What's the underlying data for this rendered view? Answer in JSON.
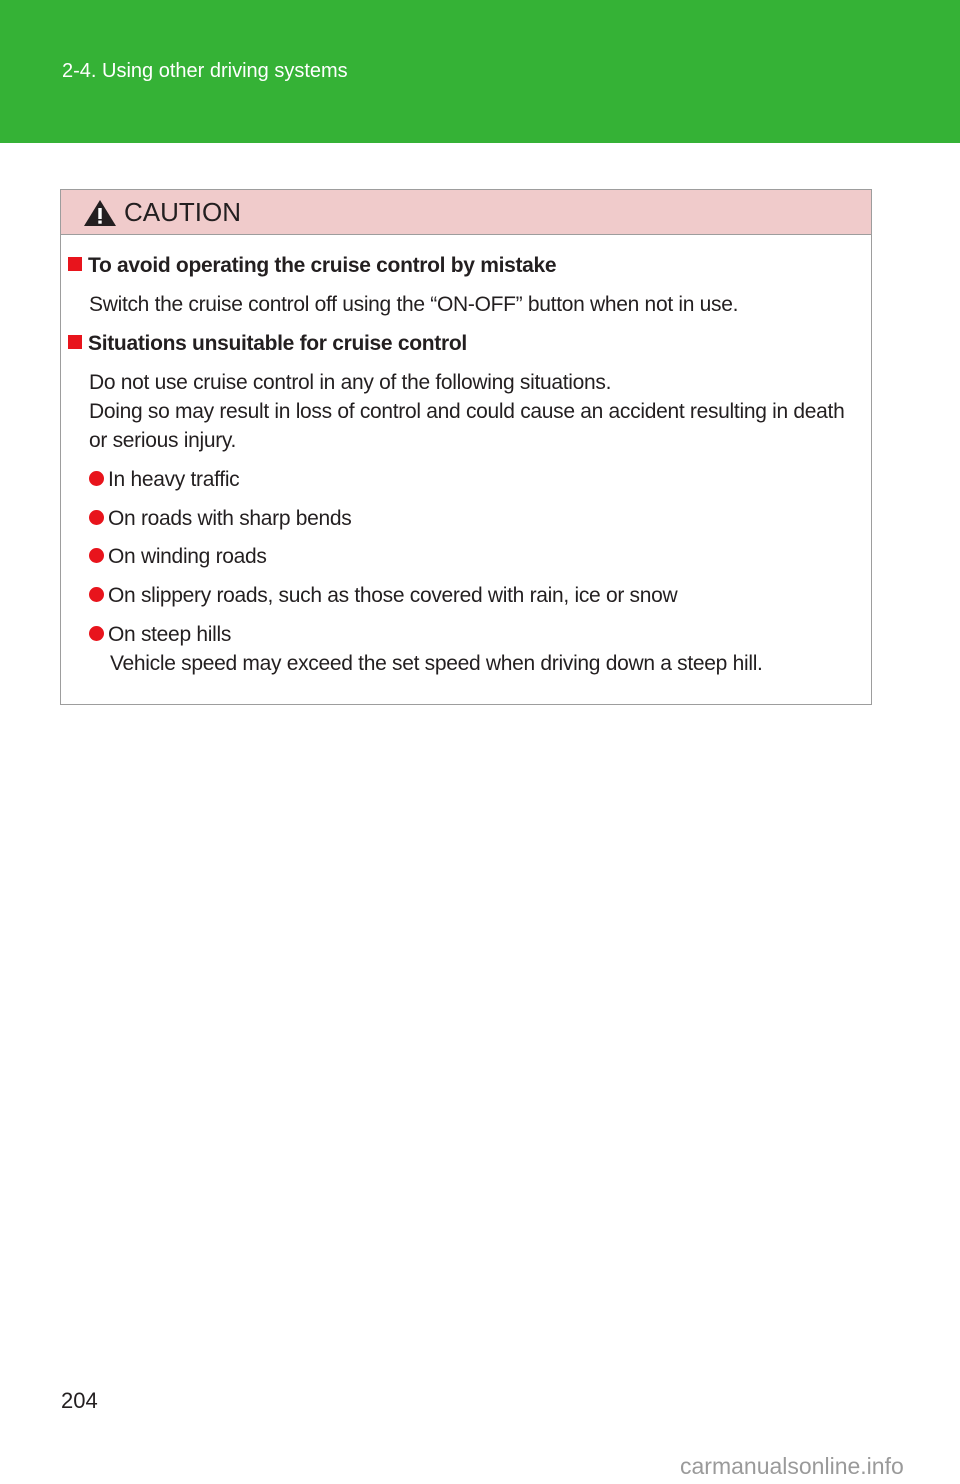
{
  "header": {
    "section_title": "2-4. Using other driving systems",
    "color": "#35b236"
  },
  "caution": {
    "icon": "warning-triangle-icon",
    "title": "CAUTION",
    "sections": [
      {
        "heading": "To avoid operating the cruise control by mistake",
        "body": [
          "Switch the cruise control off using the “ON-OFF” button when not in use."
        ]
      },
      {
        "heading": "Situations unsuitable for cruise control",
        "body": [
          "Do not use cruise control in any of the following situations.",
          "Doing so may result in loss of control and could cause an accident resulting in death",
          "or serious injury."
        ],
        "bullets": [
          "In heavy traffic",
          "On roads with sharp bends",
          "On winding roads",
          "On slippery roads, such as those covered with rain, ice or snow",
          "On steep hills"
        ],
        "bullet_note": "Vehicle speed may exceed the set speed when driving down a steep hill."
      }
    ]
  },
  "footer": {
    "page_number": "204",
    "watermark": "carmanualsonline.info"
  }
}
